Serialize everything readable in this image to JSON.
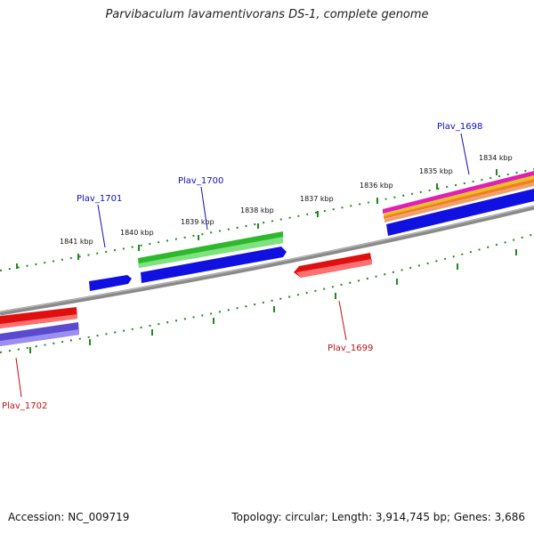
{
  "title": "Parvibaculum lavamentivorans DS-1, complete genome",
  "accession": "Accession: NC_009719",
  "genome_info": "Topology: circular; Length: 3,914,745 bp; Genes: 3,686",
  "colors": {
    "backbone": "#808080",
    "tick": "#1f8a1f",
    "forward_label": "#1010c0",
    "reverse_label": "#c01010"
  },
  "scale_labels": [
    "1841 kbp",
    "1840 kbp",
    "1839 kbp",
    "1838 kbp",
    "1837 kbp",
    "1836 kbp",
    "1835 kbp",
    "1834 kbp"
  ],
  "gene_labels": [
    "Plav_1698",
    "Plav_1699",
    "Plav_1700",
    "Plav_1701",
    "Plav_1702"
  ]
}
